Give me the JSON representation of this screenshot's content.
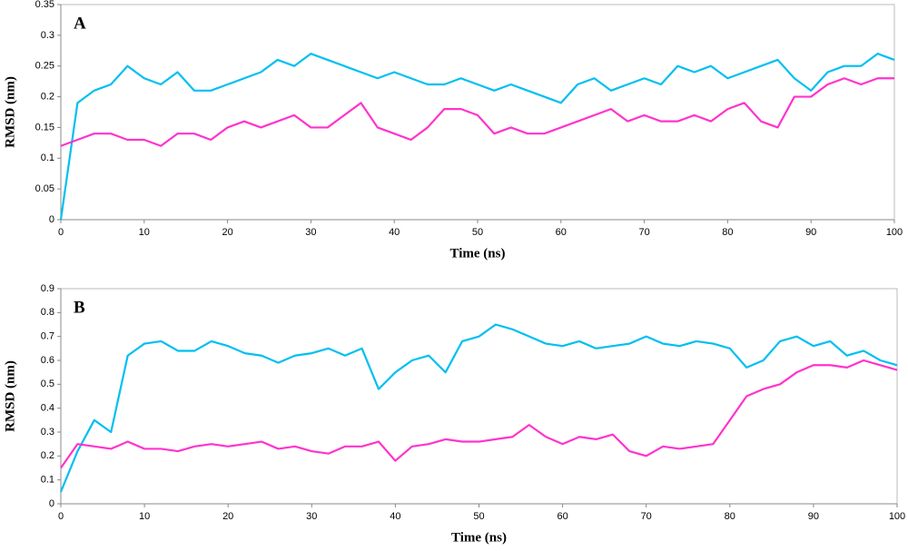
{
  "chart_data": [
    {
      "type": "line",
      "label": "A",
      "xlabel": "Time (ns)",
      "ylabel": "RMSD (nm)",
      "x": [
        0,
        2,
        4,
        6,
        8,
        10,
        12,
        14,
        16,
        18,
        20,
        22,
        24,
        26,
        28,
        30,
        32,
        34,
        36,
        38,
        40,
        42,
        44,
        46,
        48,
        50,
        52,
        54,
        56,
        58,
        60,
        62,
        64,
        66,
        68,
        70,
        72,
        74,
        76,
        78,
        80,
        82,
        84,
        86,
        88,
        90,
        92,
        94,
        96,
        98,
        100
      ],
      "series": [
        {
          "color": "#00bff0",
          "values": [
            0,
            0.19,
            0.21,
            0.22,
            0.25,
            0.23,
            0.22,
            0.24,
            0.21,
            0.21,
            0.22,
            0.23,
            0.24,
            0.26,
            0.25,
            0.27,
            0.26,
            0.25,
            0.24,
            0.23,
            0.24,
            0.23,
            0.22,
            0.22,
            0.23,
            0.22,
            0.21,
            0.22,
            0.21,
            0.2,
            0.19,
            0.22,
            0.23,
            0.21,
            0.22,
            0.23,
            0.22,
            0.25,
            0.24,
            0.25,
            0.23,
            0.24,
            0.25,
            0.26,
            0.23,
            0.21,
            0.24,
            0.25,
            0.25,
            0.27,
            0.26
          ]
        },
        {
          "color": "#ff33cc",
          "values": [
            0.12,
            0.13,
            0.14,
            0.14,
            0.13,
            0.13,
            0.12,
            0.14,
            0.14,
            0.13,
            0.15,
            0.16,
            0.15,
            0.16,
            0.17,
            0.15,
            0.15,
            0.17,
            0.19,
            0.15,
            0.14,
            0.13,
            0.15,
            0.18,
            0.18,
            0.17,
            0.14,
            0.15,
            0.14,
            0.14,
            0.15,
            0.16,
            0.17,
            0.18,
            0.16,
            0.17,
            0.16,
            0.16,
            0.17,
            0.16,
            0.18,
            0.19,
            0.16,
            0.15,
            0.2,
            0.2,
            0.22,
            0.23,
            0.22,
            0.23,
            0.23
          ]
        }
      ],
      "xlim": [
        0,
        100
      ],
      "xticks": [
        0,
        10,
        20,
        30,
        40,
        50,
        60,
        70,
        80,
        90,
        100
      ],
      "ylim": [
        0,
        0.35
      ],
      "yticks": [
        0,
        0.05,
        0.1,
        0.15,
        0.2,
        0.25,
        0.3,
        0.35
      ]
    },
    {
      "type": "line",
      "label": "B",
      "xlabel": "Time (ns)",
      "ylabel": "RMSD (nm)",
      "x": [
        0,
        2,
        4,
        6,
        8,
        10,
        12,
        14,
        16,
        18,
        20,
        22,
        24,
        26,
        28,
        30,
        32,
        34,
        36,
        38,
        40,
        42,
        44,
        46,
        48,
        50,
        52,
        54,
        56,
        58,
        60,
        62,
        64,
        66,
        68,
        70,
        72,
        74,
        76,
        78,
        80,
        82,
        84,
        86,
        88,
        90,
        92,
        94,
        96,
        98,
        100
      ],
      "series": [
        {
          "color": "#00bff0",
          "values": [
            0.05,
            0.22,
            0.35,
            0.3,
            0.62,
            0.67,
            0.68,
            0.64,
            0.64,
            0.68,
            0.66,
            0.63,
            0.62,
            0.59,
            0.62,
            0.63,
            0.65,
            0.62,
            0.65,
            0.48,
            0.55,
            0.6,
            0.62,
            0.55,
            0.68,
            0.7,
            0.75,
            0.73,
            0.7,
            0.67,
            0.66,
            0.68,
            0.65,
            0.66,
            0.67,
            0.7,
            0.67,
            0.66,
            0.68,
            0.67,
            0.65,
            0.57,
            0.6,
            0.68,
            0.7,
            0.66,
            0.68,
            0.62,
            0.64,
            0.6,
            0.58
          ]
        },
        {
          "color": "#ff33cc",
          "values": [
            0.15,
            0.25,
            0.24,
            0.23,
            0.26,
            0.23,
            0.23,
            0.22,
            0.24,
            0.25,
            0.24,
            0.25,
            0.26,
            0.23,
            0.24,
            0.22,
            0.21,
            0.24,
            0.24,
            0.26,
            0.18,
            0.24,
            0.25,
            0.27,
            0.26,
            0.26,
            0.27,
            0.28,
            0.33,
            0.28,
            0.25,
            0.28,
            0.27,
            0.29,
            0.22,
            0.2,
            0.24,
            0.23,
            0.24,
            0.25,
            0.35,
            0.45,
            0.48,
            0.5,
            0.55,
            0.58,
            0.58,
            0.57,
            0.6,
            0.58,
            0.56
          ]
        }
      ],
      "xlim": [
        0,
        100
      ],
      "xticks": [
        0,
        10,
        20,
        30,
        40,
        50,
        60,
        70,
        80,
        90,
        100
      ],
      "ylim": [
        0,
        0.9
      ],
      "yticks": [
        0,
        0.1,
        0.2,
        0.3,
        0.4,
        0.5,
        0.6,
        0.7,
        0.8,
        0.9
      ]
    }
  ]
}
